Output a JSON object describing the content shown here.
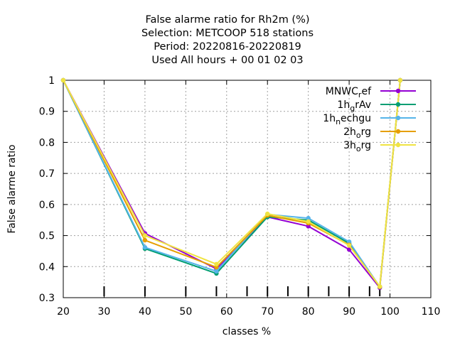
{
  "chart_data": {
    "type": "line",
    "title_lines": [
      "False alarme ratio  for Rh2m (%)",
      "Selection: METCOOP    518 stations",
      "Period: 20220816-20220819",
      "Used  All hours  + 00 01 02 03"
    ],
    "xlabel": "classes %",
    "ylabel": "False alarme ratio",
    "xlim": [
      20,
      110
    ],
    "ylim": [
      0.3,
      1.0
    ],
    "xticks": [
      20,
      30,
      40,
      50,
      60,
      70,
      80,
      90,
      100,
      110
    ],
    "yticks": [
      0.3,
      0.4,
      0.5,
      0.6,
      0.7,
      0.8,
      0.9,
      1.0
    ],
    "ytick_labels": [
      "0.3",
      "0.4",
      "0.5",
      "0.6",
      "0.7",
      "0.8",
      "0.9",
      "1"
    ],
    "grid": true,
    "legend_position": "top-right",
    "class_markers": [
      30,
      40,
      50,
      57.5,
      65,
      70,
      75,
      80,
      85,
      90,
      95,
      97.5
    ],
    "series": [
      {
        "name_main": "MNWC",
        "name_sub": "r",
        "name_rest": "ef",
        "color": "#9400D3",
        "x": [
          20,
          40,
          57.5,
          70,
          80,
          90,
          97.5,
          102.5
        ],
        "y": [
          1.0,
          0.507,
          0.393,
          0.56,
          0.53,
          0.455,
          0.332,
          1.0
        ]
      },
      {
        "name_main": "1h",
        "name_sub": "g",
        "name_rest": "rAv",
        "color": "#009E73",
        "x": [
          20,
          40,
          57.5,
          70,
          80,
          90,
          97.5,
          102.5
        ],
        "y": [
          1.0,
          0.458,
          0.378,
          0.56,
          0.55,
          0.475,
          0.335,
          1.0
        ]
      },
      {
        "name_main": "1h",
        "name_sub": "n",
        "name_rest": "echgu",
        "color": "#56B4E9",
        "x": [
          20,
          40,
          57.5,
          70,
          80,
          90,
          97.5,
          102.5
        ],
        "y": [
          1.0,
          0.462,
          0.385,
          0.568,
          0.556,
          0.48,
          0.335,
          1.0
        ]
      },
      {
        "name_main": "2h",
        "name_sub": "o",
        "name_rest": "rg",
        "color": "#E69F00",
        "x": [
          20,
          40,
          57.5,
          70,
          80,
          90,
          97.5,
          102.5
        ],
        "y": [
          1.0,
          0.485,
          0.398,
          0.565,
          0.54,
          0.47,
          0.335,
          1.0
        ]
      },
      {
        "name_main": "3h",
        "name_sub": "o",
        "name_rest": "rg",
        "color": "#F0E442",
        "x": [
          20,
          40,
          57.5,
          70,
          80,
          90,
          97.5,
          102.5
        ],
        "y": [
          1.0,
          0.5,
          0.408,
          0.57,
          0.545,
          0.468,
          0.336,
          1.0
        ]
      }
    ]
  }
}
